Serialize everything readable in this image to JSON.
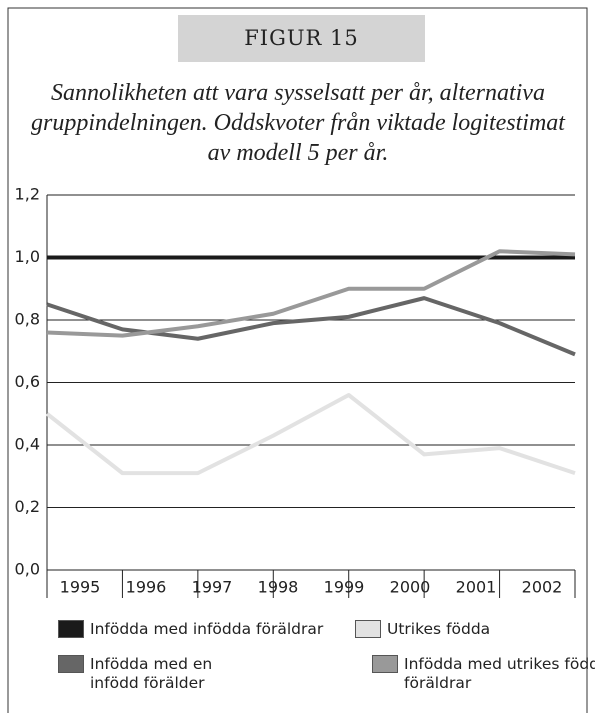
{
  "header": "FIGUR 15",
  "chart_data": {
    "type": "line",
    "title": "Sannolikheten att vara sysselsatt per år, alternativa gruppindelningen. Oddskvoter från viktade logitestimat av modell 5 per år.",
    "categories": [
      "1995",
      "1996",
      "1997",
      "1998",
      "1999",
      "2000",
      "2001",
      "2002"
    ],
    "series": [
      {
        "name": "Infödda med infödda föräldrar",
        "color": "#1a1a1a",
        "values": [
          1.0,
          1.0,
          1.0,
          1.0,
          1.0,
          1.0,
          1.0,
          1.0
        ]
      },
      {
        "name": "Utrikes födda",
        "color": "#e2e2e2",
        "values": [
          0.5,
          0.31,
          0.31,
          0.43,
          0.56,
          0.37,
          0.39,
          0.31
        ]
      },
      {
        "name": "Infödda med en infödd förälder",
        "color": "#666666",
        "values": [
          0.85,
          0.77,
          0.74,
          0.79,
          0.81,
          0.87,
          0.79,
          0.69
        ]
      },
      {
        "name": "Infödda med utrikes födda föräldrar",
        "color": "#999999",
        "values": [
          0.76,
          0.75,
          0.78,
          0.82,
          0.9,
          0.9,
          1.02,
          1.01
        ]
      }
    ],
    "ylim": [
      0,
      1.2
    ],
    "yticks": [
      {
        "value": 0,
        "label": "0,0"
      },
      {
        "value": 0.2,
        "label": "0,2"
      },
      {
        "value": 0.4,
        "label": "0,4"
      },
      {
        "value": 0.6,
        "label": "0,6"
      },
      {
        "value": 0.8,
        "label": "0,8"
      },
      {
        "value": 1.0,
        "label": "1,0"
      },
      {
        "value": 1.2,
        "label": "1,2"
      }
    ],
    "grid": true
  }
}
